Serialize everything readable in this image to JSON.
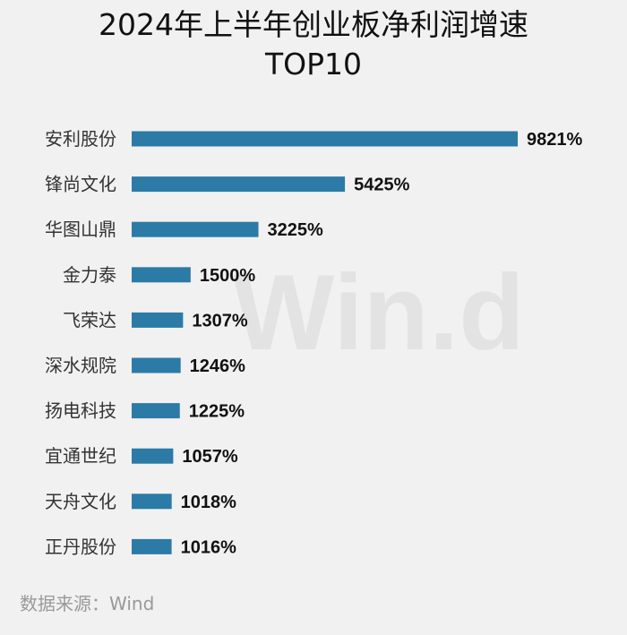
{
  "header": {
    "title_line1": "2024年上半年创业板净利润增速",
    "title_line2": "TOP10"
  },
  "watermark": "Win.d",
  "source": "数据来源：Wind",
  "colors": {
    "bar": "#2c7aa6",
    "background": "#f1f1f1"
  },
  "chart_data": {
    "type": "bar",
    "orientation": "horizontal",
    "categories": [
      "安利股份",
      "锋尚文化",
      "华图山鼎",
      "金力泰",
      "飞荣达",
      "深水规院",
      "扬电科技",
      "宜通世纪",
      "天舟文化",
      "正丹股份"
    ],
    "values": [
      9821,
      5425,
      3225,
      1500,
      1307,
      1246,
      1225,
      1057,
      1018,
      1016
    ],
    "value_labels": [
      "9821%",
      "5425%",
      "3225%",
      "1500%",
      "1307%",
      "1246%",
      "1225%",
      "1057%",
      "1018%",
      "1016%"
    ],
    "unit": "%",
    "title": "2024年上半年创业板净利润增速TOP10",
    "xlabel": "",
    "ylabel": "",
    "xlim": [
      0,
      9821
    ],
    "grid": false
  }
}
